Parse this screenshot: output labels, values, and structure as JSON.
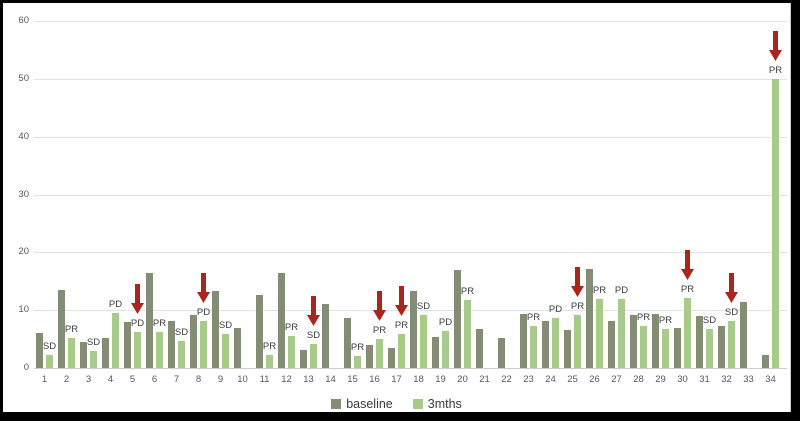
{
  "chart_data": {
    "type": "bar",
    "title": "",
    "xlabel": "",
    "ylabel": "",
    "ylim": [
      0,
      60
    ],
    "yticks": [
      0,
      10,
      20,
      30,
      40,
      50,
      60
    ],
    "grid": true,
    "legend_position": "bottom-center",
    "categories": [
      "1",
      "2",
      "3",
      "4",
      "5",
      "6",
      "7",
      "8",
      "9",
      "10",
      "11",
      "12",
      "13",
      "14",
      "15",
      "16",
      "17",
      "18",
      "19",
      "20",
      "21",
      "22",
      "23",
      "24",
      "25",
      "26",
      "27",
      "28",
      "29",
      "30",
      "31",
      "32",
      "33",
      "34"
    ],
    "series": [
      {
        "name": "baseline",
        "color": "#838d74",
        "values": [
          6,
          13.5,
          4.5,
          5.2,
          8,
          16.4,
          8.1,
          9.2,
          13.3,
          6.9,
          12.6,
          16.4,
          3.1,
          11.1,
          8.7,
          4,
          3.5,
          13.3,
          5.4,
          17,
          6.7,
          5.2,
          9.3,
          8.2,
          6.6,
          17.2,
          8.2,
          9.1,
          9.3,
          7,
          9,
          7.2,
          11.4,
          2.3
        ]
      },
      {
        "name": "3mths",
        "color": "#a7cb8a",
        "values": [
          2.3,
          5.2,
          3,
          9.5,
          6.2,
          6.2,
          4.7,
          8.1,
          5.9,
          0,
          2.2,
          5.5,
          4.2,
          0,
          2.1,
          5.1,
          5.9,
          9.2,
          6.4,
          11.8,
          0,
          0,
          7.2,
          8.7,
          9.1,
          11.9,
          11.9,
          7.2,
          6.7,
          12.1,
          6.7,
          8.1,
          0,
          50
        ]
      }
    ],
    "annotations": [
      {
        "category": "1",
        "label": "SD",
        "arrow": false
      },
      {
        "category": "2",
        "label": "PR",
        "arrow": false
      },
      {
        "category": "3",
        "label": "SD",
        "arrow": false
      },
      {
        "category": "4",
        "label": "PD",
        "arrow": false
      },
      {
        "category": "5",
        "label": "PD",
        "arrow": true
      },
      {
        "category": "6",
        "label": "PR",
        "arrow": false
      },
      {
        "category": "7",
        "label": "SD",
        "arrow": false
      },
      {
        "category": "8",
        "label": "PD",
        "arrow": true
      },
      {
        "category": "9",
        "label": "SD",
        "arrow": false
      },
      {
        "category": "11",
        "label": "PR",
        "arrow": false
      },
      {
        "category": "12",
        "label": "PR",
        "arrow": false
      },
      {
        "category": "13",
        "label": "SD",
        "arrow": true
      },
      {
        "category": "15",
        "label": "PR",
        "arrow": false
      },
      {
        "category": "16",
        "label": "PR",
        "arrow": true
      },
      {
        "category": "17",
        "label": "PR",
        "arrow": true
      },
      {
        "category": "18",
        "label": "SD",
        "arrow": false
      },
      {
        "category": "19",
        "label": "PD",
        "arrow": false
      },
      {
        "category": "20",
        "label": "PR",
        "arrow": false
      },
      {
        "category": "23",
        "label": "PR",
        "arrow": false
      },
      {
        "category": "24",
        "label": "PD",
        "arrow": false
      },
      {
        "category": "25",
        "label": "PR",
        "arrow": true
      },
      {
        "category": "26",
        "label": "PR",
        "arrow": false
      },
      {
        "category": "27",
        "label": "PD",
        "arrow": false
      },
      {
        "category": "28",
        "label": "PR",
        "arrow": false
      },
      {
        "category": "29",
        "label": "PR",
        "arrow": false
      },
      {
        "category": "30",
        "label": "PR",
        "arrow": true
      },
      {
        "category": "31",
        "label": "SD",
        "arrow": false
      },
      {
        "category": "32",
        "label": "SD",
        "arrow": true
      },
      {
        "category": "34",
        "label": "PR",
        "arrow": true
      }
    ],
    "colors": {
      "arrow": "#a7271e",
      "grid": "#dee4eb",
      "axis_line": "#c9ced4",
      "tick_text": "#595959",
      "annotation_text": "#3f3f3f",
      "frame": "#000000",
      "background": "#ffffff"
    }
  }
}
